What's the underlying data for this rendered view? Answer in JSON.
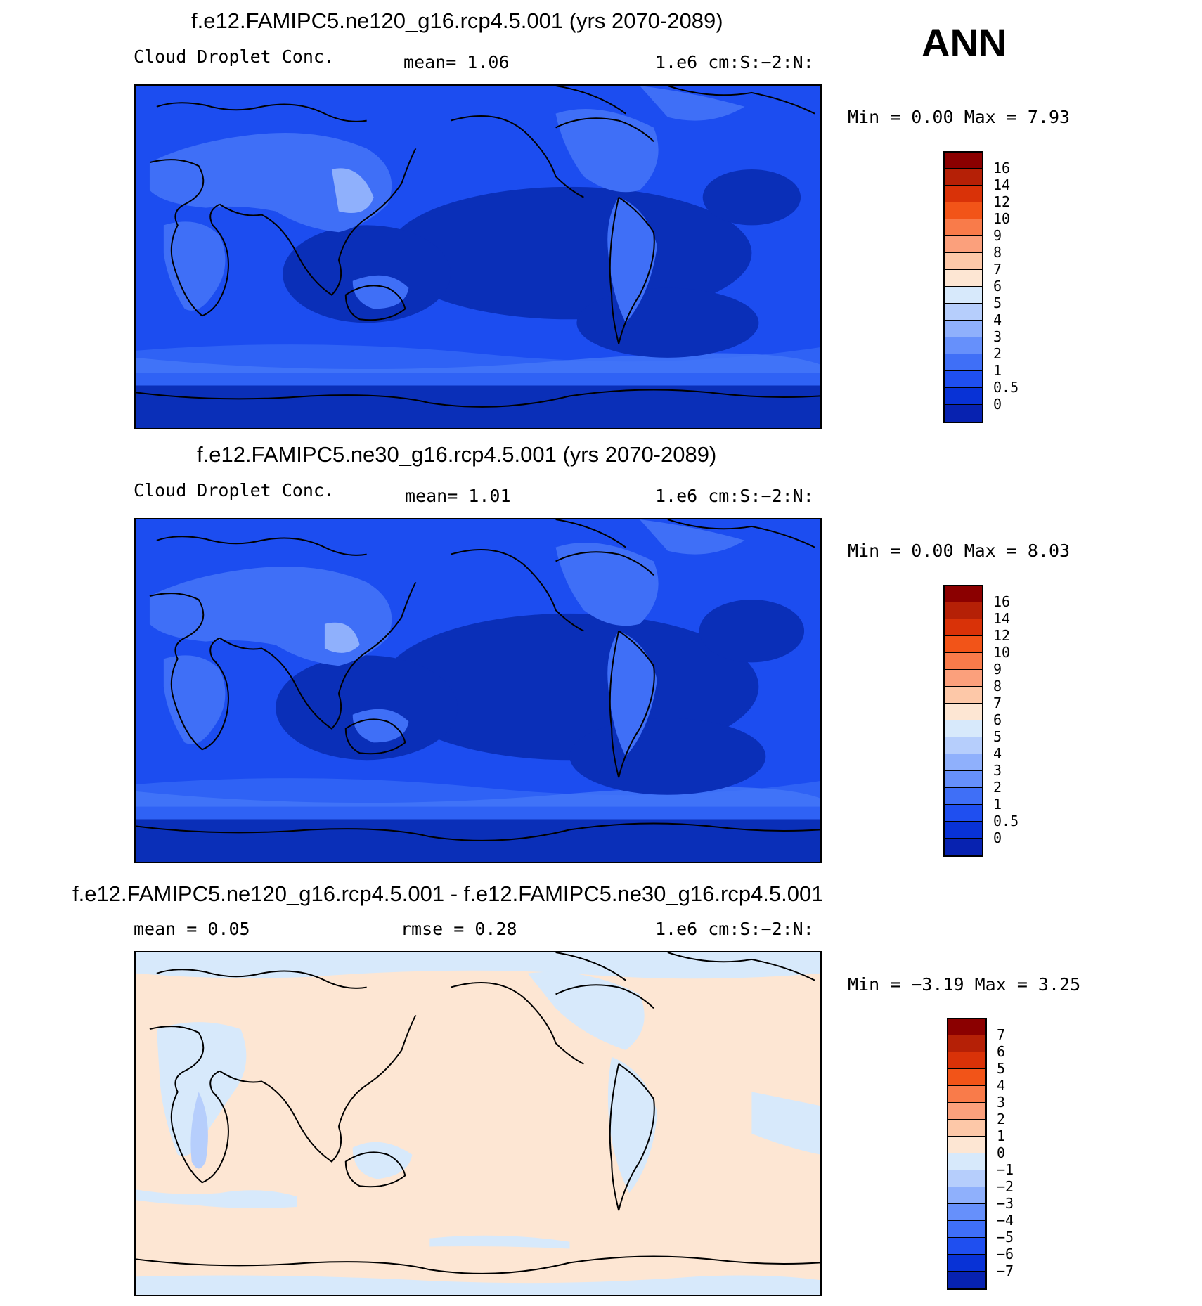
{
  "season": "ANN",
  "panels": [
    {
      "title": "f.e12.FAMIPC5.ne120_g16.rcp4.5.001 (yrs 2070-2089)",
      "left_label": "Cloud Droplet Conc.",
      "mean_text": "mean=    1.06",
      "units_text": "1.e6 cm:S:−2:N:",
      "minmax_text": "Min =    0.00 Max =    7.93",
      "colorbar": {
        "colors": [
          "#8b0000",
          "#b52006",
          "#d93208",
          "#f25418",
          "#f97b4a",
          "#fba07c",
          "#fdc8a8",
          "#fde6d3",
          "#d7e9fb",
          "#b6cefc",
          "#8fb0fc",
          "#6690fb",
          "#3f6ff7",
          "#1f4ff0",
          "#0832d6",
          "#0722b0",
          "#020a78"
        ],
        "labels": [
          "16",
          "14",
          "12",
          "10",
          "9",
          "8",
          "7",
          "6",
          "5",
          "4",
          "3",
          "2",
          "1",
          "0.5",
          "0"
        ]
      }
    },
    {
      "title": "f.e12.FAMIPC5.ne30_g16.rcp4.5.001 (yrs 2070-2089)",
      "left_label": "Cloud Droplet Conc.",
      "mean_text": "mean=    1.01",
      "units_text": "1.e6 cm:S:−2:N:",
      "minmax_text": "Min =    0.00 Max =    8.03",
      "colorbar": {
        "colors": [
          "#8b0000",
          "#b52006",
          "#d93208",
          "#f25418",
          "#f97b4a",
          "#fba07c",
          "#fdc8a8",
          "#fde6d3",
          "#d7e9fb",
          "#b6cefc",
          "#8fb0fc",
          "#6690fb",
          "#3f6ff7",
          "#1f4ff0",
          "#0832d6",
          "#0722b0",
          "#020a78"
        ],
        "labels": [
          "16",
          "14",
          "12",
          "10",
          "9",
          "8",
          "7",
          "6",
          "5",
          "4",
          "3",
          "2",
          "1",
          "0.5",
          "0"
        ]
      }
    },
    {
      "title": "f.e12.FAMIPC5.ne120_g16.rcp4.5.001 - f.e12.FAMIPC5.ne30_g16.rcp4.5.001",
      "left_label": "mean =    0.05",
      "mean_text": "rmse =    0.28",
      "units_text": "1.e6 cm:S:−2:N:",
      "minmax_text": "Min =  −3.19 Max =    3.25",
      "colorbar": {
        "colors": [
          "#8b0000",
          "#b52006",
          "#d93208",
          "#f25418",
          "#f97b4a",
          "#fba07c",
          "#fdc8a8",
          "#fde6d3",
          "#d7e9fb",
          "#b6cefc",
          "#8fb0fc",
          "#6690fb",
          "#3f6ff7",
          "#1f4ff0",
          "#0832d6",
          "#0722b0",
          "#020a78"
        ],
        "labels": [
          "7",
          "6",
          "5",
          "4",
          "3",
          "2",
          "1",
          "0",
          "−1",
          "−2",
          "−3",
          "−4",
          "−5",
          "−6",
          "−7"
        ]
      }
    }
  ],
  "map_palette": {
    "ocean_dark": "#0a2fb8",
    "ocean_mid": "#1c4df0",
    "ocean_light": "#4578f9",
    "land_light": "#8fb0fc",
    "diff_positive": "#fde6d3",
    "diff_negative": "#d7e9fb",
    "diff_neg_strong": "#b6cefc"
  }
}
